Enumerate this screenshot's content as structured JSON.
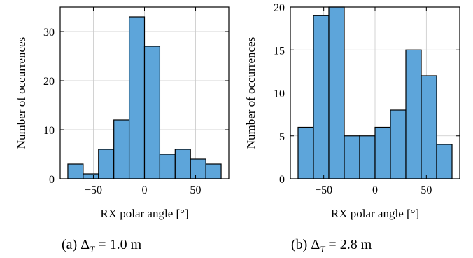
{
  "chart_data": [
    {
      "type": "bar",
      "xlabel": "RX polar angle [°]",
      "ylabel": "Number of occurrences",
      "xlim": [
        -82.5,
        82.5
      ],
      "ylim": [
        0,
        35
      ],
      "xticks": [
        -50,
        0,
        50
      ],
      "yticks": [
        0,
        10,
        20,
        30
      ],
      "grid": true,
      "bin_edges": [
        -75,
        -60,
        -45,
        -30,
        -15,
        0,
        15,
        30,
        45,
        60,
        75
      ],
      "values": [
        3,
        1,
        6,
        12,
        33,
        27,
        5,
        6,
        4,
        3
      ],
      "bar_color": "#5DA5DA",
      "caption": "(a) Δ",
      "caption_sub": "T",
      "caption_rest": " = 1.0 m"
    },
    {
      "type": "bar",
      "xlabel": "RX polar angle [°]",
      "ylabel": "Number of occurrences",
      "xlim": [
        -82.5,
        82.5
      ],
      "ylim": [
        0,
        20
      ],
      "xticks": [
        -50,
        0,
        50
      ],
      "yticks": [
        0,
        5,
        10,
        15,
        20
      ],
      "grid": true,
      "bin_edges": [
        -75,
        -60,
        -45,
        -30,
        -15,
        0,
        15,
        30,
        45,
        60,
        75
      ],
      "values": [
        6,
        19,
        20,
        5,
        5,
        6,
        8,
        15,
        12,
        4
      ],
      "bar_color": "#5DA5DA",
      "caption": "(b) Δ",
      "caption_sub": "T",
      "caption_rest": " = 2.8 m"
    }
  ]
}
